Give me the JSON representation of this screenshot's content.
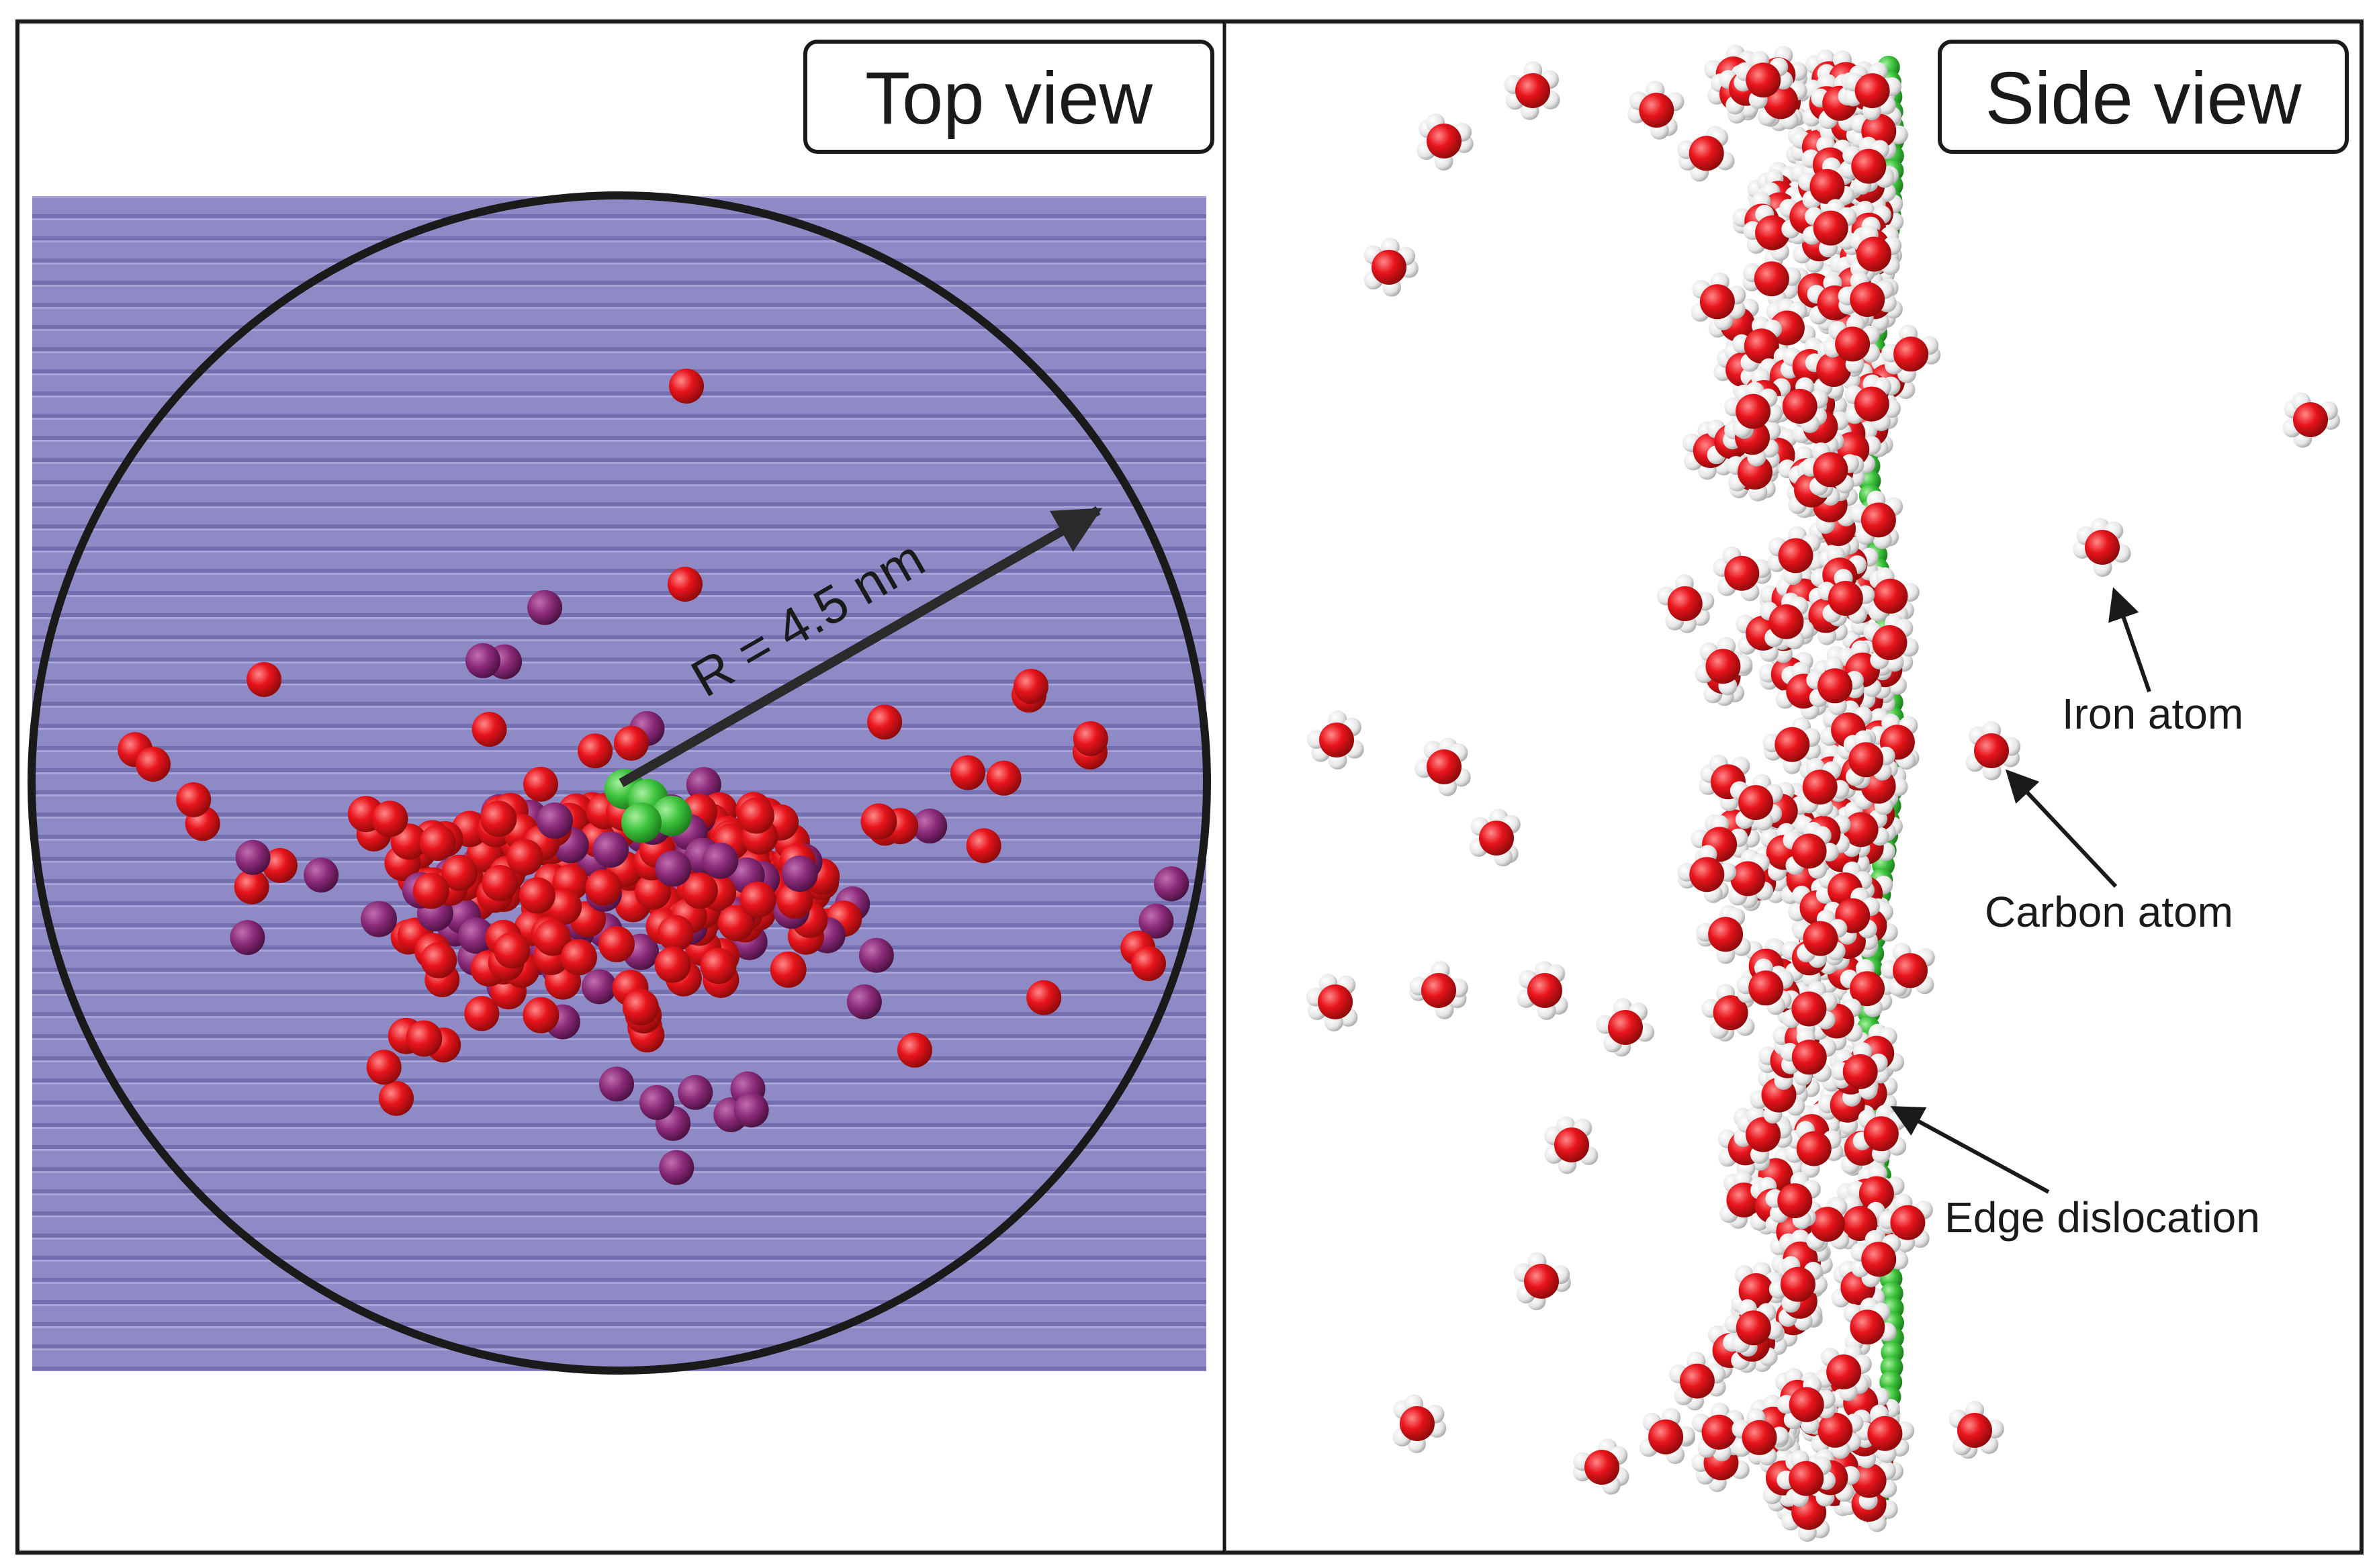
{
  "panels": {
    "top": {
      "title": "Top view",
      "radius_label": "R = 4.5 nm"
    },
    "side": {
      "title": "Side view",
      "annotations": {
        "iron": "Iron atom",
        "carbon": "Carbon atom",
        "dislocation": "Edge dislocation"
      }
    }
  },
  "colors": {
    "matrix_background": "#8e8ac6",
    "matrix_stripe": "#7470b0",
    "carbon_atom_red": "#e8141c",
    "carbon_atom_purple": "#8a2a78",
    "dislocation_green": "#3cc23c",
    "iron_atom_white": "#f2f2f2",
    "outline": "#1a1a1a"
  }
}
